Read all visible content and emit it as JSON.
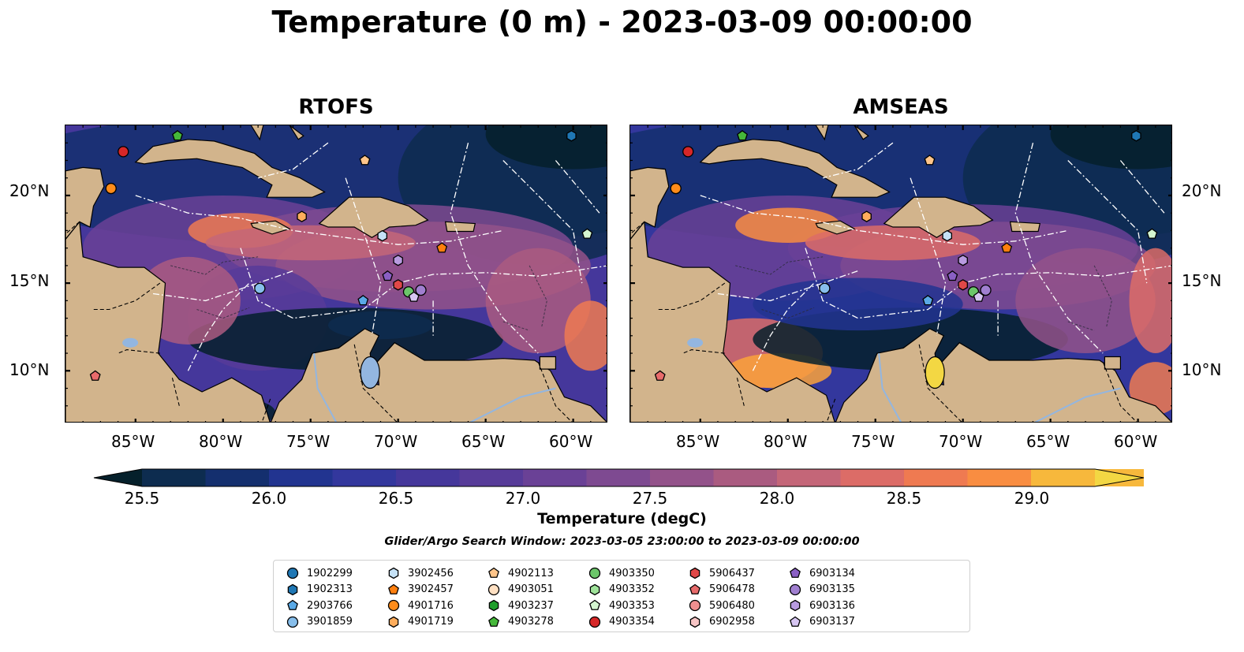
{
  "title": "Temperature (0 m) - 2023-03-09 00:00:00",
  "panels": [
    {
      "title": "RTOFS"
    },
    {
      "title": "AMSEAS"
    }
  ],
  "axes": {
    "lat_ticks": [
      "20°N",
      "15°N",
      "10°N"
    ],
    "lon_ticks": [
      "85°W",
      "80°W",
      "75°W",
      "70°W",
      "65°W",
      "60°W"
    ]
  },
  "map_extent": {
    "lon_min": -89,
    "lon_max": -58,
    "lat_min": 7,
    "lat_max": 24
  },
  "colorbar": {
    "label": "Temperature (degC)",
    "min": 25.5,
    "max": 29.0,
    "step": 0.25,
    "extend": "both",
    "ticks": [
      "25.5",
      "26.0",
      "26.5",
      "27.0",
      "27.5",
      "28.0",
      "28.5",
      "29.0"
    ],
    "colors": [
      "#05202b",
      "#0d2c4f",
      "#142f6e",
      "#223490",
      "#33379d",
      "#45379b",
      "#573b99",
      "#6a4196",
      "#7e4a91",
      "#93528a",
      "#aa5b80",
      "#c46678",
      "#dc6c67",
      "#ef7a51",
      "#f98d41",
      "#fba23b",
      "#f7b83c",
      "#f3d743",
      "#e8f75c"
    ]
  },
  "search_window": "Glider/Argo Search Window: 2023-03-05 23:00:00 to 2023-03-09 00:00:00",
  "legend": [
    {
      "id": "1902299",
      "color": "#1f77b4",
      "marker": "circle"
    },
    {
      "id": "1902313",
      "color": "#1f77b4",
      "marker": "hexagon"
    },
    {
      "id": "2903766",
      "color": "#5aa9e6",
      "marker": "pentagon"
    },
    {
      "id": "3901859",
      "color": "#87beeb",
      "marker": "circle"
    },
    {
      "id": "3902456",
      "color": "#c6e2f7",
      "marker": "hexagon"
    },
    {
      "id": "3902457",
      "color": "#ff7f0e",
      "marker": "pentagon"
    },
    {
      "id": "4901716",
      "color": "#ff8c1a",
      "marker": "circle"
    },
    {
      "id": "4901719",
      "color": "#ffad5c",
      "marker": "hexagon"
    },
    {
      "id": "4902113",
      "color": "#ffc58a",
      "marker": "pentagon"
    },
    {
      "id": "4903051",
      "color": "#ffe0c2",
      "marker": "circle"
    },
    {
      "id": "4903237",
      "color": "#1f9e2c",
      "marker": "hexagon"
    },
    {
      "id": "4903278",
      "color": "#45b83a",
      "marker": "pentagon"
    },
    {
      "id": "4903350",
      "color": "#6cc66a",
      "marker": "circle"
    },
    {
      "id": "4903352",
      "color": "#9fe39a",
      "marker": "hexagon"
    },
    {
      "id": "4903353",
      "color": "#d4f5d0",
      "marker": "pentagon"
    },
    {
      "id": "4903354",
      "color": "#d62728",
      "marker": "circle"
    },
    {
      "id": "5906437",
      "color": "#e04848",
      "marker": "hexagon"
    },
    {
      "id": "5906478",
      "color": "#e86b6b",
      "marker": "pentagon"
    },
    {
      "id": "5906480",
      "color": "#f08f8f",
      "marker": "circle"
    },
    {
      "id": "6902958",
      "color": "#f7c5c5",
      "marker": "hexagon"
    },
    {
      "id": "6903134",
      "color": "#8a5fc4",
      "marker": "pentagon"
    },
    {
      "id": "6903135",
      "color": "#a07fd0",
      "marker": "circle"
    },
    {
      "id": "6903136",
      "color": "#b89be0",
      "marker": "hexagon"
    },
    {
      "id": "6903137",
      "color": "#d7c6f2",
      "marker": "pentagon"
    }
  ],
  "floats": [
    {
      "id": "1902313",
      "lon": -60.1,
      "lat": 23.4
    },
    {
      "id": "4903278",
      "lon": -82.6,
      "lat": 23.4
    },
    {
      "id": "4903354",
      "lon": -85.7,
      "lat": 22.5
    },
    {
      "id": "4902113",
      "lon": -71.9,
      "lat": 22.0
    },
    {
      "id": "4901716",
      "lon": -86.4,
      "lat": 20.4
    },
    {
      "id": "4901719",
      "lon": -75.5,
      "lat": 18.8
    },
    {
      "id": "4903353",
      "lon": -59.2,
      "lat": 17.8
    },
    {
      "id": "3902456",
      "lon": -70.9,
      "lat": 17.7
    },
    {
      "id": "3902457",
      "lon": -67.5,
      "lat": 17.0
    },
    {
      "id": "6903136",
      "lon": -70.0,
      "lat": 16.3
    },
    {
      "id": "6903134",
      "lon": -70.6,
      "lat": 15.4
    },
    {
      "id": "5906437",
      "lon": -70.0,
      "lat": 14.9
    },
    {
      "id": "3901859",
      "lon": -77.9,
      "lat": 14.7
    },
    {
      "id": "4903350",
      "lon": -69.4,
      "lat": 14.5
    },
    {
      "id": "6903135",
      "lon": -68.7,
      "lat": 14.6
    },
    {
      "id": "6903137",
      "lon": -69.1,
      "lat": 14.2
    },
    {
      "id": "2903766",
      "lon": -72.0,
      "lat": 14.0
    },
    {
      "id": "5906478",
      "lon": -87.3,
      "lat": 9.7
    }
  ]
}
